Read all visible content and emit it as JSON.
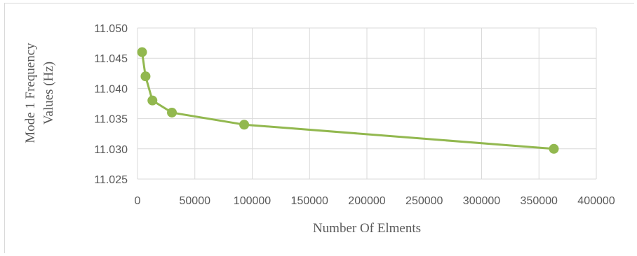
{
  "chart_data": {
    "type": "line",
    "title": "",
    "xlabel": "Number Of Elments",
    "ylabel_lines": [
      "Mode 1 Frequency",
      "Values (Hz)"
    ],
    "xlim": [
      0,
      400000
    ],
    "ylim": [
      11.025,
      11.05
    ],
    "x_ticks": [
      0,
      50000,
      100000,
      150000,
      200000,
      250000,
      300000,
      350000,
      400000
    ],
    "y_ticks": [
      "11.025",
      "11.030",
      "11.035",
      "11.040",
      "11.045",
      "11.050"
    ],
    "grid": true,
    "legend": "none",
    "series": [
      {
        "color": "#92b84f",
        "x": [
          4000,
          7000,
          13000,
          30000,
          93000,
          363000
        ],
        "y": [
          11.046,
          11.042,
          11.038,
          11.036,
          11.034,
          11.03
        ]
      }
    ]
  }
}
